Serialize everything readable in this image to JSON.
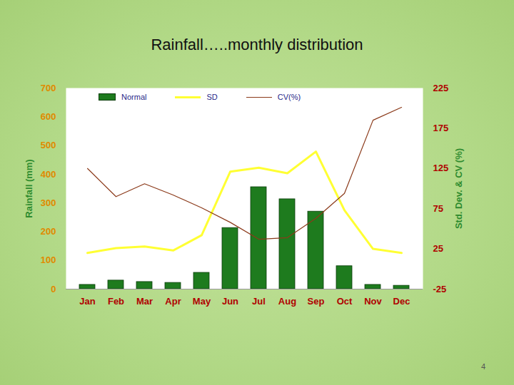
{
  "chart_data": {
    "type": "bar",
    "title": "Rainfall…..monthly distribution",
    "categories": [
      "Jan",
      "Feb",
      "Mar",
      "Apr",
      "May",
      "Jun",
      "Jul",
      "Aug",
      "Sep",
      "Oct",
      "Nov",
      "Dec"
    ],
    "series": [
      {
        "name": "Normal",
        "type": "bar",
        "color": "#1e7b1e",
        "values": [
          15,
          30,
          25,
          22,
          57,
          213,
          355,
          313,
          270,
          80,
          15,
          12
        ]
      },
      {
        "name": "SD",
        "type": "line",
        "color": "#ffff33",
        "axis": "y2",
        "values": [
          20,
          26,
          28,
          23,
          42,
          121,
          126,
          119,
          146,
          73,
          25,
          20
        ]
      },
      {
        "name": "CV(%)",
        "type": "line",
        "color": "#8b3a1a",
        "axis": "y2",
        "values": [
          125,
          90,
          106,
          92,
          76,
          58,
          37,
          39,
          63,
          94,
          185,
          201
        ]
      }
    ],
    "ylabel": "Rainfall (mm)",
    "y2label": "Std. Dev. & CV (%)",
    "ylim": [
      0,
      700
    ],
    "yticks": [
      0,
      100,
      200,
      300,
      400,
      500,
      600,
      700
    ],
    "y2lim": [
      -25,
      225
    ],
    "y2ticks": [
      -25,
      25,
      75,
      125,
      175,
      225
    ],
    "legend": "top",
    "annotations": [
      "4"
    ]
  }
}
